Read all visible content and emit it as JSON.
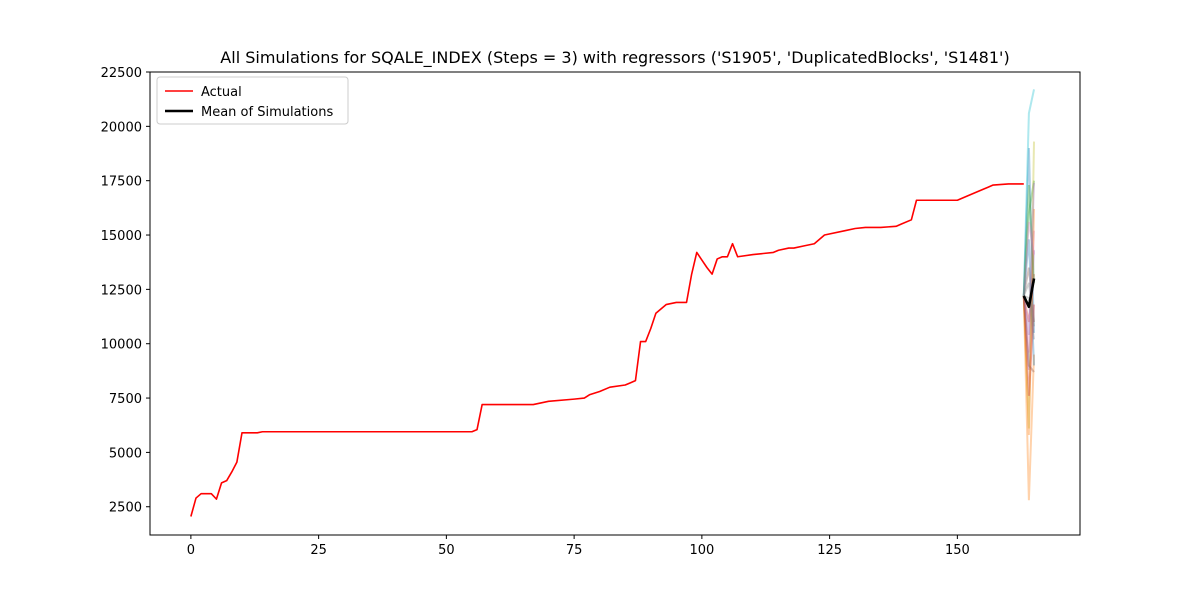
{
  "chart_data": {
    "type": "line",
    "title": "All Simulations for SQALE_INDEX (Steps = 3) with regressors ('S1905', 'DuplicatedBlocks', 'S1481')",
    "xlabel": "",
    "ylabel": "",
    "xlim": [
      -8,
      174
    ],
    "ylim": [
      1200,
      22500
    ],
    "xticks": [
      0,
      25,
      50,
      75,
      100,
      125,
      150
    ],
    "yticks": [
      2500,
      5000,
      7500,
      10000,
      12500,
      15000,
      17500,
      20000,
      22500
    ],
    "grid": false,
    "legend": {
      "placement": "upper-left",
      "entries": [
        {
          "label": "Actual",
          "color": "#ff0000"
        },
        {
          "label": "Mean of Simulations",
          "color": "#000000"
        }
      ]
    },
    "actual": {
      "name": "Actual",
      "color": "#ff0000",
      "x": [
        0,
        1,
        2,
        3,
        4,
        5,
        6,
        7,
        8,
        9,
        10,
        11,
        12,
        13,
        14,
        20,
        30,
        40,
        50,
        55,
        56,
        57,
        60,
        66,
        67,
        70,
        75,
        77,
        78,
        80,
        82,
        85,
        86,
        87,
        88,
        89,
        90,
        91,
        93,
        95,
        97,
        98,
        99,
        100,
        101,
        102,
        103,
        104,
        105,
        106,
        107,
        110,
        114,
        115,
        117,
        118,
        120,
        122,
        124,
        128,
        130,
        132,
        135,
        138,
        139,
        141,
        142,
        143,
        145,
        148,
        150,
        152,
        155,
        156,
        157,
        160,
        163
      ],
      "y": [
        2050,
        2900,
        3100,
        3100,
        3100,
        2850,
        3600,
        3700,
        4100,
        4550,
        5900,
        5900,
        5900,
        5900,
        5950,
        5950,
        5950,
        5950,
        5950,
        5950,
        6050,
        7200,
        7200,
        7200,
        7200,
        7350,
        7450,
        7500,
        7650,
        7800,
        8000,
        8100,
        8200,
        8300,
        10100,
        10100,
        10700,
        11400,
        11800,
        11900,
        11900,
        13200,
        14200,
        13850,
        13500,
        13200,
        13900,
        14000,
        14000,
        14600,
        14000,
        14100,
        14200,
        14300,
        14400,
        14400,
        14500,
        14600,
        15000,
        15200,
        15300,
        15350,
        15350,
        15400,
        15500,
        15700,
        16600,
        16600,
        16600,
        16600,
        16600,
        16800,
        17100,
        17200,
        17300,
        17350,
        17350
      ]
    },
    "mean": {
      "name": "Mean of Simulations",
      "color": "#000000",
      "x": [
        163,
        164,
        165
      ],
      "y": [
        12200,
        11700,
        13000
      ]
    },
    "simulations": {
      "colors": [
        "#1f77b4",
        "#ff7f0e",
        "#2ca02c",
        "#d62728",
        "#9467bd",
        "#8c564b",
        "#e377c2",
        "#7f7f7f",
        "#bcbd22",
        "#17becf"
      ],
      "x": [
        163,
        164,
        165
      ],
      "runs": [
        [
          12200,
          19000,
          10500
        ],
        [
          12200,
          2800,
          9500
        ],
        [
          12200,
          16000,
          17500
        ],
        [
          12200,
          11000,
          13200
        ],
        [
          12200,
          8800,
          14300
        ],
        [
          12200,
          13500,
          11000
        ],
        [
          12200,
          9600,
          15200
        ],
        [
          12200,
          12100,
          10200
        ],
        [
          12200,
          6100,
          19300
        ],
        [
          12200,
          20600,
          21700
        ],
        [
          12200,
          14800,
          9000
        ],
        [
          12200,
          5800,
          16200
        ],
        [
          12200,
          17300,
          12800
        ],
        [
          12200,
          7600,
          11800
        ],
        [
          12200,
          10400,
          17400
        ],
        [
          12200,
          9000,
          8700
        ],
        [
          12200,
          15600,
          14100
        ],
        [
          12200,
          12800,
          10800
        ]
      ]
    }
  }
}
